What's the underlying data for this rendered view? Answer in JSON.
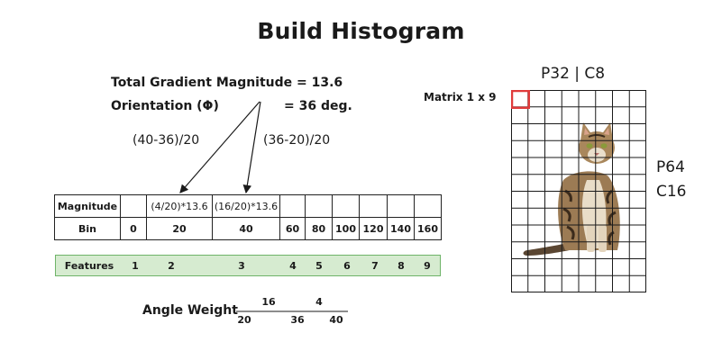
{
  "title": "Build Histogram",
  "gradient": {
    "magnitude_line": "Total Gradient Magnitude = 13.6",
    "orientation_label": "Orientation (Φ)",
    "orientation_value": "= 36 deg.",
    "fraction_left": "(40-36)/20",
    "fraction_right": "(36-20)/20"
  },
  "table": {
    "magnitude_label": "Magnitude",
    "bin_label": "Bin",
    "magnitude_values": [
      "",
      "(4/20)*13.6",
      "(16/20)*13.6",
      "",
      "",
      "",
      "",
      "",
      ""
    ],
    "bins": [
      "0",
      "20",
      "40",
      "60",
      "80",
      "100",
      "120",
      "140",
      "160"
    ]
  },
  "features": {
    "label": "Features",
    "indices": [
      "1",
      "2",
      "3",
      "4",
      "5",
      "6",
      "7",
      "8",
      "9"
    ]
  },
  "angle_weight": {
    "label": "Angle Weight",
    "top_values": [
      "16",
      "4"
    ],
    "bottom_values": [
      "20",
      "36",
      "40"
    ]
  },
  "image_panel": {
    "matrix_label": "Matrix 1 x 9",
    "top_label": "P32 | C8",
    "side_label_1": "P64",
    "side_label_2": "C16",
    "grid_cols": 8,
    "grid_rows": 12,
    "highlight_color": "#e03b3b",
    "image_subject": "cat-image"
  }
}
